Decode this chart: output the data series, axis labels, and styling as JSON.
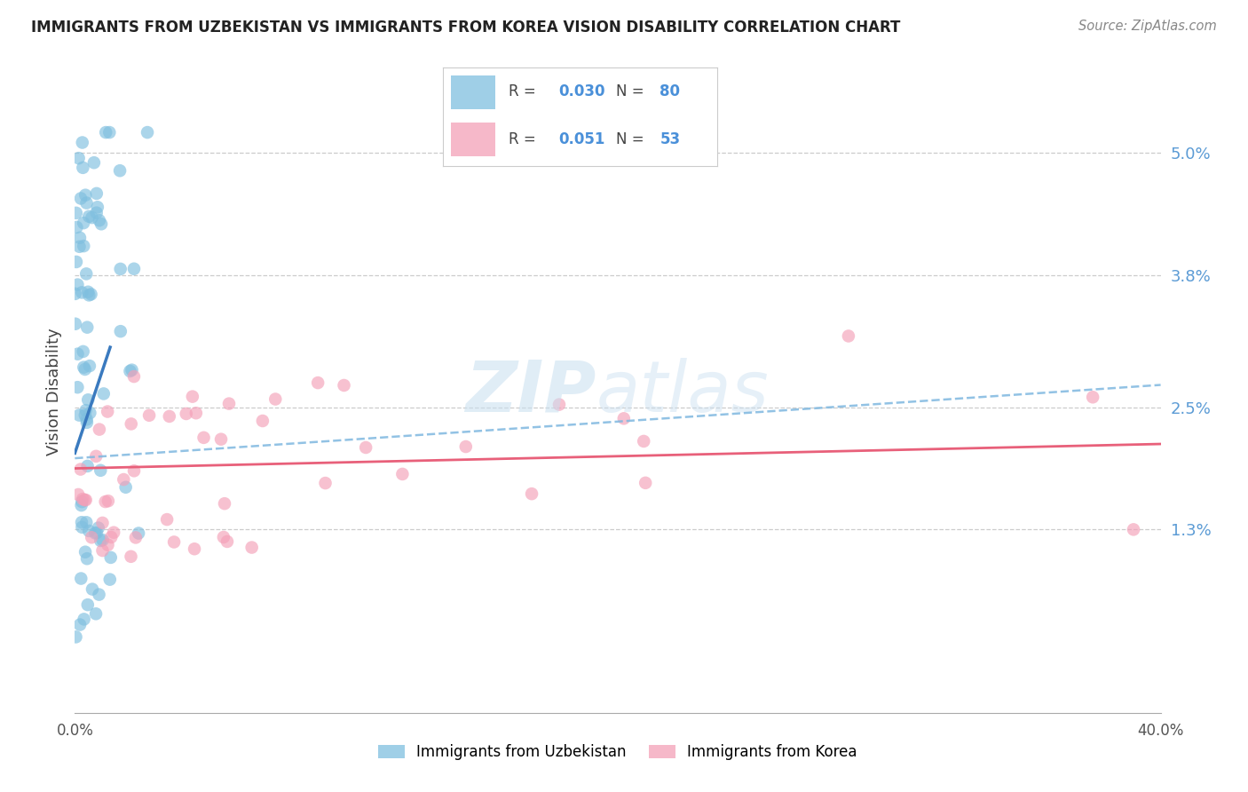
{
  "title": "IMMIGRANTS FROM UZBEKISTAN VS IMMIGRANTS FROM KOREA VISION DISABILITY CORRELATION CHART",
  "source": "Source: ZipAtlas.com",
  "ylabel": "Vision Disability",
  "ytick_labels": [
    "5.0%",
    "3.8%",
    "2.5%",
    "1.3%"
  ],
  "ytick_values": [
    0.05,
    0.038,
    0.025,
    0.013
  ],
  "xlim": [
    0.0,
    0.4
  ],
  "ylim": [
    -0.005,
    0.058
  ],
  "uzbekistan_color": "#7fbfdf",
  "korea_color": "#f4a0b8",
  "uzbekistan_line_color": "#3a7abf",
  "korea_line_color": "#e8607a",
  "uzbekistan_dash_color": "#7fb8e0",
  "background_color": "#ffffff",
  "watermark_zip": "ZIP",
  "watermark_atlas": "atlas",
  "R_uzbekistan": 0.03,
  "N_uzbekistan": 80,
  "R_korea": 0.051,
  "N_korea": 53,
  "legend_label_uzbekistan": "Immigrants from Uzbekistan",
  "legend_label_korea": "Immigrants from Korea"
}
